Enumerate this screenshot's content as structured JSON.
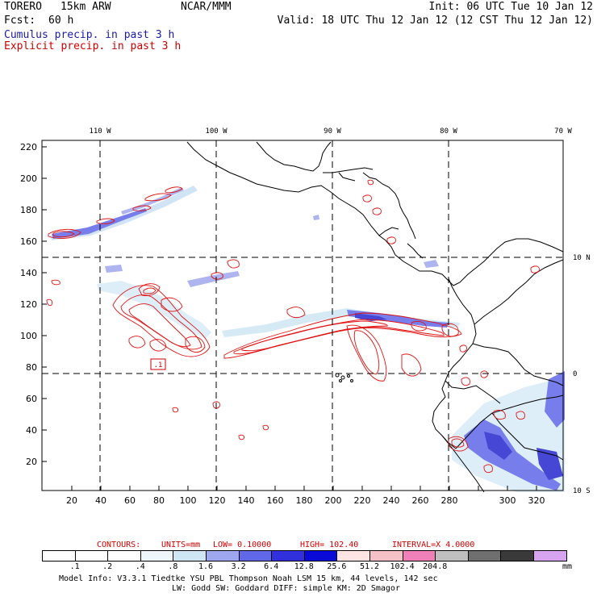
{
  "header": {
    "model": "TORERO",
    "resolution": "15km ARW",
    "org": "NCAR/MMM",
    "init": "Init: 06 UTC Tue 10 Jan 12",
    "fcst_label": "Fcst:",
    "fcst_value": "60 h",
    "valid": "Valid: 18 UTC Thu 12 Jan 12 (12 CST Thu 12 Jan 12)",
    "legend_cumulus": "Cumulus precip. in past 3 h",
    "legend_explicit": "Explicit precip. in past 3 h"
  },
  "colors": {
    "cumulus": "#1a1aa6",
    "explicit": "#cc0000",
    "grid": "#000000"
  },
  "map": {
    "lon_labels": [
      "110 W",
      "100 W",
      "90 W",
      "80 W",
      "70 W"
    ],
    "lat_labels": [
      "10 N",
      "0",
      "10 S"
    ],
    "y_ticks": [
      "220",
      "200",
      "180",
      "160",
      "140",
      "120",
      "100",
      "80",
      "60",
      "40",
      "20"
    ],
    "x_ticks": [
      "20",
      "40",
      "60",
      "80",
      "100",
      "120",
      "140",
      "160",
      "180",
      "200",
      "220",
      "240",
      "260",
      "280",
      "300",
      "320"
    ],
    "contour_label": ".1"
  },
  "contour_info": {
    "contours": "CONTOURS:",
    "units": "UNITS=mm",
    "low": "LOW= 0.10000",
    "high": "HIGH= 102.40",
    "interval": "INTERVAL=X 4.0000"
  },
  "colorbar": {
    "colors": [
      "#ffffff",
      "#ffffff",
      "#ffffff",
      "#eef6fb",
      "#cfe7f5",
      "#9fa8ee",
      "#6068e8",
      "#3030dc",
      "#0a0ad8",
      "#ffe4e4",
      "#f6c1c6",
      "#f080b8",
      "#bfbfbf",
      "#6f6f6f",
      "#3a3a3a",
      "#d7a4f0"
    ],
    "labels": [
      ".1",
      ".2",
      ".4",
      ".8",
      "1.6",
      "3.2",
      "6.4",
      "12.8",
      "25.6",
      "51.2",
      "102.4",
      "204.8"
    ],
    "unit": "mm"
  },
  "footer": {
    "line1": "Model Info: V3.3.1    Tiedtke YSU PBL  Thompson     Noah LSM  15 km,   44 levels,  142 sec",
    "line2": "LW: Godd SW: Goddard DIFF: simple KM: 2D Smagor"
  }
}
